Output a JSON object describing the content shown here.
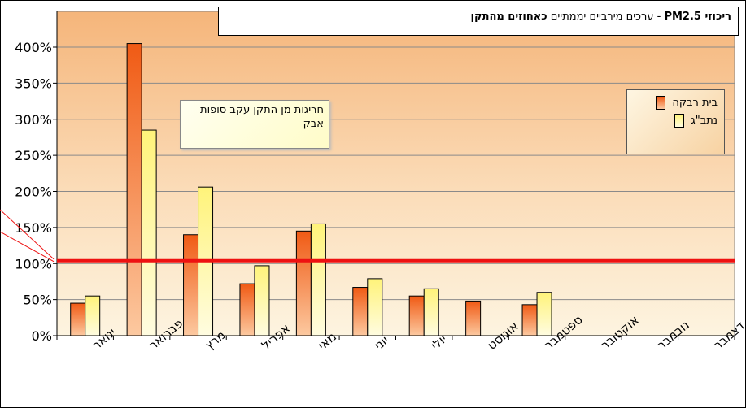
{
  "chart_data": {
    "type": "bar",
    "title_bold": "ריכוזי PM2.5",
    "title_rest": " - ערכים מירביים יממתיים ",
    "title_bold2": "כאחוזים מהתקן",
    "categories": [
      "ינואר",
      "פברואר",
      "מרץ",
      "אפריל",
      "מאי",
      "יוני",
      "יולי",
      "אוגוסט",
      "ספטמבר",
      "אוקטובר",
      "נובמבר",
      "דצמבר"
    ],
    "series": [
      {
        "name": "בית רבקה",
        "values": [
          45,
          405,
          140,
          72,
          145,
          67,
          55,
          48,
          43,
          null,
          null,
          null
        ]
      },
      {
        "name": "נתב\"ג",
        "values": [
          55,
          285,
          206,
          97,
          155,
          79,
          65,
          null,
          60,
          null,
          null,
          null
        ]
      }
    ],
    "y_ticks": [
      "0%",
      "50%",
      "100%",
      "150%",
      "200%",
      "250%",
      "300%",
      "350%",
      "400%"
    ],
    "ylim": [
      0,
      400
    ],
    "reference_line": 104,
    "annotation": "חריגות מן התקן עקב סופות אבק",
    "legend_position": "right",
    "colors": {
      "series1": "#f06a1e",
      "series2": "#fff89a",
      "reference": "#ee1111",
      "bg_top": "#f5b57a",
      "bg_bottom": "#fdf4e0"
    }
  }
}
